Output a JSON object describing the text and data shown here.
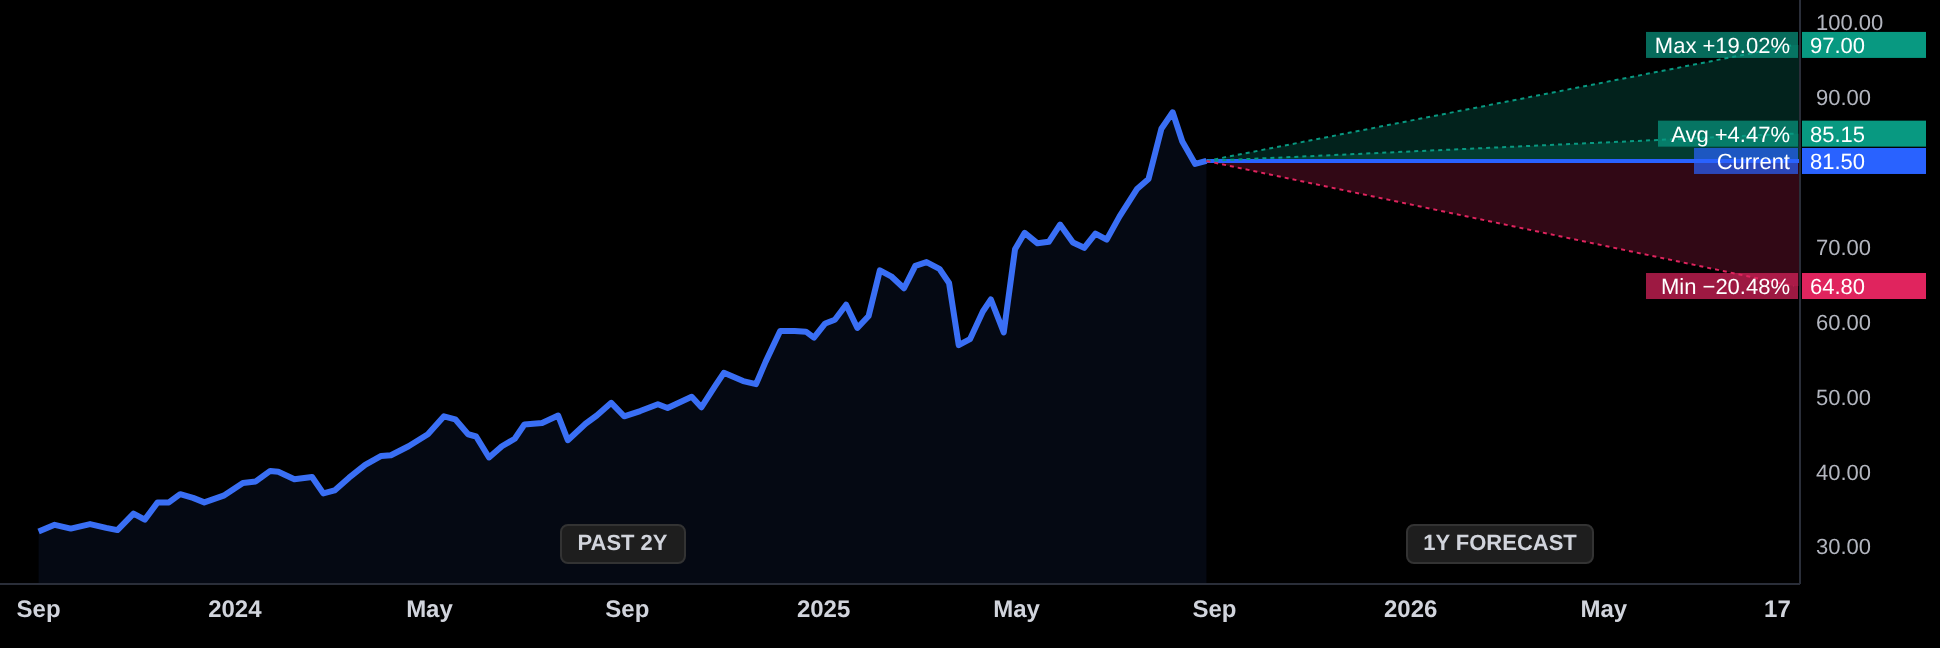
{
  "chart_data": {
    "type": "area",
    "annotations": [
      "PAST 2Y",
      "1Y FORECAST"
    ],
    "xlim": [
      "2023-08-08",
      "2026-08-31"
    ],
    "xticks": [
      {
        "value": "2023-09-01",
        "label": "Sep"
      },
      {
        "value": "2024-01-01",
        "label": "2024"
      },
      {
        "value": "2024-05-01",
        "label": "May"
      },
      {
        "value": "2024-09-01",
        "label": "Sep"
      },
      {
        "value": "2025-01-01",
        "label": "2025"
      },
      {
        "value": "2025-05-01",
        "label": "May"
      },
      {
        "value": "2025-09-01",
        "label": "Sep"
      },
      {
        "value": "2026-01-01",
        "label": "2026"
      },
      {
        "value": "2026-05-01",
        "label": "May"
      },
      {
        "value": "2026-08-17",
        "label": "17"
      }
    ],
    "ylim": [
      25,
      103
    ],
    "yticks": [
      {
        "value": 30,
        "label": "30.00"
      },
      {
        "value": 40,
        "label": "40.00"
      },
      {
        "value": 50,
        "label": "50.00"
      },
      {
        "value": 60,
        "label": "60.00"
      },
      {
        "value": 70,
        "label": "70.00"
      },
      {
        "value": 90,
        "label": "90.00"
      },
      {
        "value": 100,
        "label": "100.00"
      }
    ],
    "series": [
      {
        "color": "#3a6ff5",
        "x": [
          "2023-09-01",
          "2023-09-11",
          "2023-09-21",
          "2023-10-03",
          "2023-10-13",
          "2023-10-20",
          "2023-10-30",
          "2023-11-06",
          "2023-11-14",
          "2023-11-21",
          "2023-11-28",
          "2023-12-06",
          "2023-12-13",
          "2023-12-25",
          "2024-01-06",
          "2024-01-14",
          "2024-01-23",
          "2024-01-28",
          "2024-02-07",
          "2024-02-18",
          "2024-02-25",
          "2024-03-03",
          "2024-03-12",
          "2024-03-22",
          "2024-04-01",
          "2024-04-07",
          "2024-04-18",
          "2024-04-30",
          "2024-05-10",
          "2024-05-17",
          "2024-05-25",
          "2024-05-30",
          "2024-06-07",
          "2024-06-15",
          "2024-06-23",
          "2024-06-29",
          "2024-07-10",
          "2024-07-20",
          "2024-07-26",
          "2024-08-06",
          "2024-08-13",
          "2024-08-22",
          "2024-08-30",
          "2024-09-09",
          "2024-09-20",
          "2024-09-26",
          "2024-10-06",
          "2024-10-11",
          "2024-10-17",
          "2024-10-26",
          "2024-10-31",
          "2024-11-12",
          "2024-11-20",
          "2024-11-26",
          "2024-12-05",
          "2024-12-14",
          "2024-12-21",
          "2024-12-26",
          "2025-01-02",
          "2025-01-08",
          "2025-01-15",
          "2025-01-22",
          "2025-01-29",
          "2025-02-05",
          "2025-02-12",
          "2025-02-20",
          "2025-02-27",
          "2025-03-06",
          "2025-03-14",
          "2025-03-20",
          "2025-03-26",
          "2025-04-02",
          "2025-04-10",
          "2025-04-15",
          "2025-04-23",
          "2025-04-30",
          "2025-05-06",
          "2025-05-14",
          "2025-05-21",
          "2025-05-28",
          "2025-06-05",
          "2025-06-12",
          "2025-06-19",
          "2025-06-26",
          "2025-07-04",
          "2025-07-15",
          "2025-07-22",
          "2025-07-30",
          "2025-08-06",
          "2025-08-12",
          "2025-08-20",
          "2025-08-27"
        ],
        "values": [
          32.0,
          32.9,
          32.4,
          33.0,
          32.5,
          32.2,
          34.4,
          33.6,
          35.9,
          35.9,
          37.0,
          36.5,
          35.9,
          36.8,
          38.5,
          38.7,
          40.1,
          40.0,
          39.0,
          39.3,
          37.1,
          37.5,
          39.2,
          40.9,
          42.1,
          42.2,
          43.4,
          45.0,
          47.4,
          47.0,
          45.0,
          44.7,
          41.9,
          43.4,
          44.4,
          46.3,
          46.5,
          47.5,
          44.2,
          46.4,
          47.5,
          49.2,
          47.4,
          48.1,
          49.0,
          48.5,
          49.5,
          50.0,
          48.6,
          51.6,
          53.2,
          52.1,
          51.7,
          54.7,
          58.8,
          58.8,
          58.7,
          57.9,
          59.8,
          60.3,
          62.3,
          59.2,
          60.8,
          66.9,
          66.1,
          64.5,
          67.5,
          68.0,
          67.1,
          65.2,
          56.9,
          57.7,
          61.4,
          63.0,
          58.6,
          69.7,
          71.9,
          70.5,
          70.7,
          73.0,
          70.6,
          69.9,
          71.8,
          71.0,
          74.1,
          77.8,
          79.1,
          85.8,
          88.0,
          84.1,
          81.1,
          81.5
        ]
      },
      {
        "type": "line",
        "name": "Max +19.02%",
        "color": "#089981",
        "line_style": "dotted",
        "x": [
          "2025-08-27",
          "2026-08-27"
        ],
        "values": [
          81.5,
          97.0
        ],
        "value_labels": [
          null,
          "97.00"
        ]
      },
      {
        "type": "line",
        "name": "Avg +4.47%",
        "color": "#089981",
        "line_style": "dotted",
        "x": [
          "2025-08-27",
          "2026-08-27"
        ],
        "values": [
          81.5,
          85.15
        ],
        "value_labels": [
          null,
          "85.15"
        ]
      },
      {
        "type": "line",
        "name": "Current",
        "color": "#2962ff",
        "line_style": "solid",
        "x": [
          "2025-08-27",
          "2026-08-31"
        ],
        "values": [
          81.5,
          81.5
        ],
        "value_labels": [
          null,
          "81.50"
        ]
      },
      {
        "type": "line",
        "name": "Min −20.48%",
        "color": "#e0245e",
        "line_style": "dotted",
        "x": [
          "2025-08-27",
          "2026-08-27"
        ],
        "values": [
          81.5,
          64.8
        ],
        "value_labels": [
          null,
          "64.80"
        ]
      }
    ]
  }
}
